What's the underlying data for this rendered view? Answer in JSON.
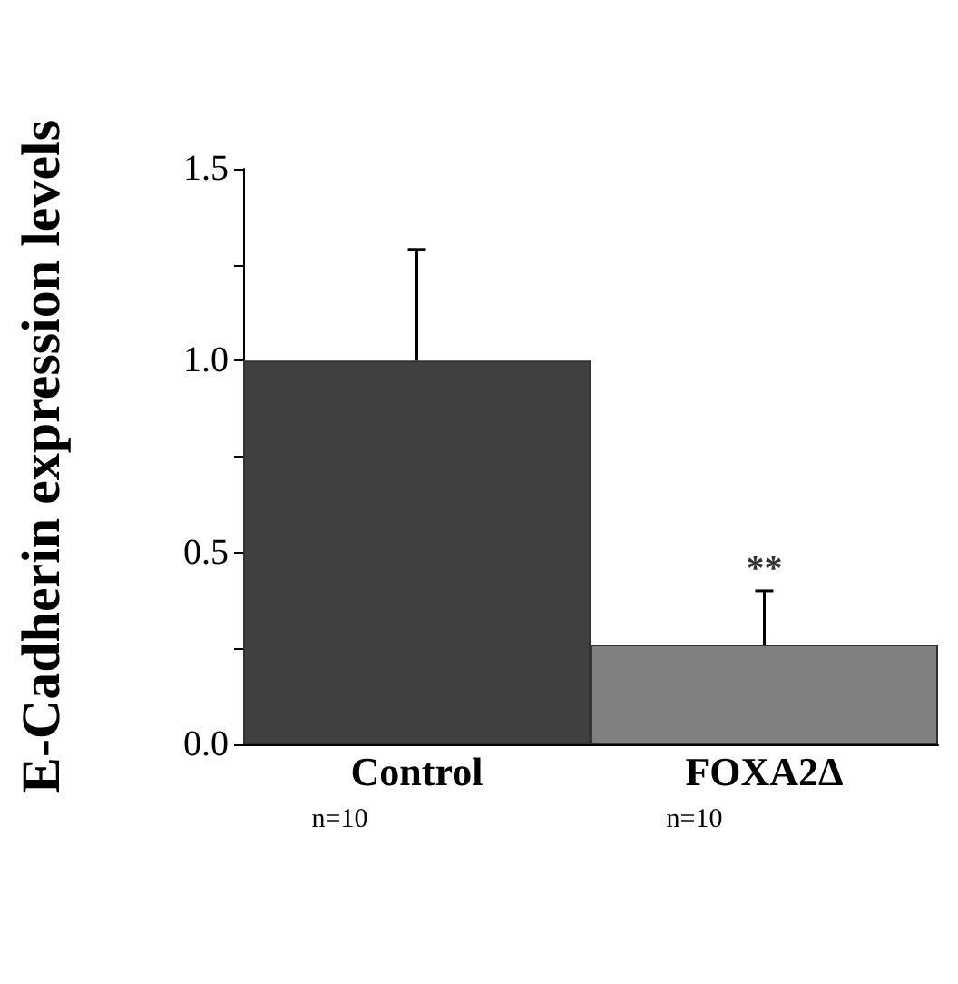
{
  "chart_data": {
    "type": "bar",
    "ylabel": "E-Cadherin expression levels",
    "categories": [
      "Control",
      "FOXA2Δ"
    ],
    "values": [
      1.0,
      0.26
    ],
    "colors": [
      "#404040",
      "#808080"
    ],
    "errors": [
      [
        1.0,
        1.29
      ],
      [
        0.26,
        0.4
      ]
    ],
    "ylim": [
      0,
      1.5
    ],
    "yticks": [
      {
        "value": 0,
        "label": "0.0"
      },
      {
        "value": 0.25,
        "label": null
      },
      {
        "value": 0.5,
        "label": "0.5"
      },
      {
        "value": 0.75,
        "label": null
      },
      {
        "value": 1,
        "label": "1.0"
      },
      {
        "value": 1.25,
        "label": null
      },
      {
        "value": 1.5,
        "label": "1.5"
      }
    ],
    "grid": false,
    "annotations": [
      {
        "text": "**",
        "x": "FOXA2Δ",
        "y": 0.4
      },
      "n=10",
      "n=10"
    ]
  }
}
